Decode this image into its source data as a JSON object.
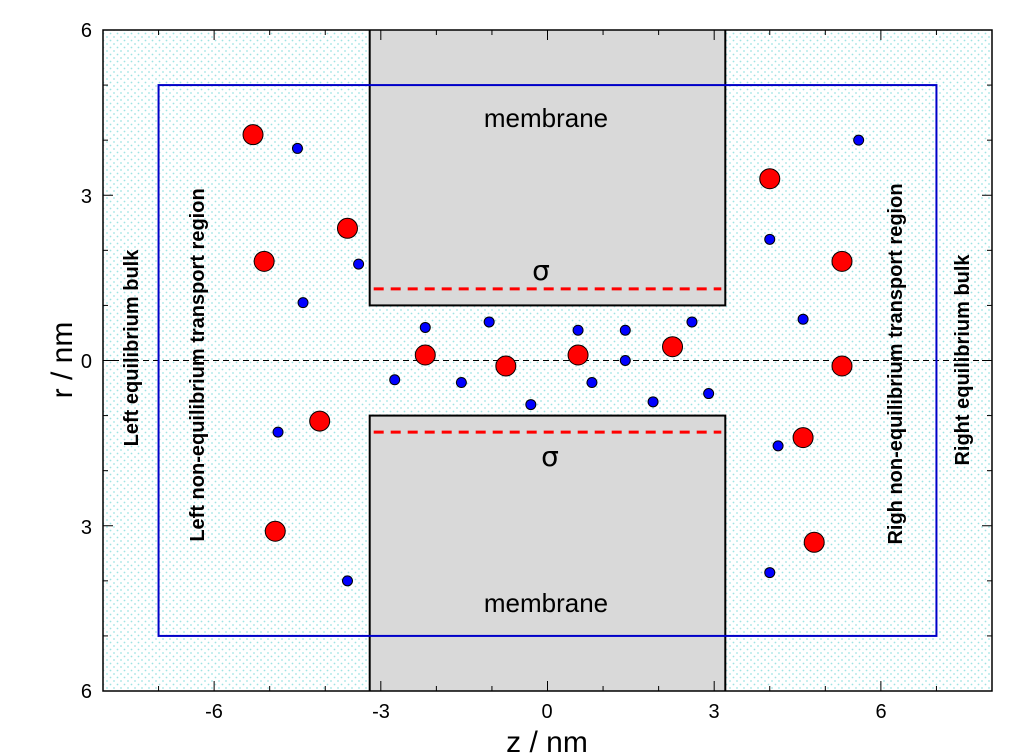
{
  "axes": {
    "x_title": "z / nm",
    "y_title": "r / nm",
    "x_ticks": [
      "-6",
      "-3",
      "0",
      "3",
      "6"
    ],
    "y_ticks": [
      "6",
      "3",
      "0",
      "3",
      "6"
    ]
  },
  "labels": {
    "membrane_top": "membrane",
    "membrane_bottom": "membrane",
    "sigma_top": "σ",
    "sigma_bottom": "σ",
    "left_bulk": "Left equilibrium bulk",
    "left_transport": "Left non-equilibrium transport region",
    "right_transport": "Righ non-equilibrium transport region",
    "right_bulk": "Right equilibrium bulk"
  },
  "colors": {
    "background_dots": "#9fe3e3",
    "membrane_fill": "#d9d9d9",
    "region_box": "#0000c8",
    "sigma_line": "#ff0000",
    "large_ion": "#ff0000",
    "small_ion": "#0000ff"
  },
  "geometry": {
    "z_range": [
      -8,
      8
    ],
    "r_range": [
      -6,
      6
    ],
    "box_z": [
      -7,
      7
    ],
    "box_r": [
      -5,
      5
    ],
    "membrane_z": [
      -3.2,
      3.2
    ],
    "pore_radius": 1.0,
    "sigma_r": 1.3
  },
  "ions": {
    "large": [
      [
        -5.3,
        4.1
      ],
      [
        -5.1,
        1.8
      ],
      [
        -3.6,
        2.4
      ],
      [
        -4.1,
        -1.1
      ],
      [
        -4.9,
        -3.1
      ],
      [
        -2.2,
        0.1
      ],
      [
        -0.75,
        -0.1
      ],
      [
        0.55,
        0.1
      ],
      [
        2.25,
        0.25
      ],
      [
        4.0,
        3.3
      ],
      [
        5.3,
        1.8
      ],
      [
        5.3,
        -0.1
      ],
      [
        4.6,
        -1.4
      ],
      [
        4.8,
        -3.3
      ]
    ],
    "small": [
      [
        -4.5,
        3.85
      ],
      [
        -3.4,
        1.75
      ],
      [
        -4.4,
        1.05
      ],
      [
        -4.85,
        -1.3
      ],
      [
        -3.6,
        -4.0
      ],
      [
        -2.75,
        -0.35
      ],
      [
        -2.2,
        0.6
      ],
      [
        -1.55,
        -0.4
      ],
      [
        -1.05,
        0.7
      ],
      [
        -0.3,
        -0.8
      ],
      [
        0.55,
        0.55
      ],
      [
        0.8,
        -0.4
      ],
      [
        1.4,
        0.55
      ],
      [
        1.4,
        0.0
      ],
      [
        1.9,
        -0.75
      ],
      [
        2.6,
        0.7
      ],
      [
        2.9,
        -0.6
      ],
      [
        4.0,
        2.2
      ],
      [
        5.6,
        4.0
      ],
      [
        4.6,
        0.75
      ],
      [
        4.15,
        -1.55
      ],
      [
        4.0,
        -3.85
      ]
    ]
  }
}
